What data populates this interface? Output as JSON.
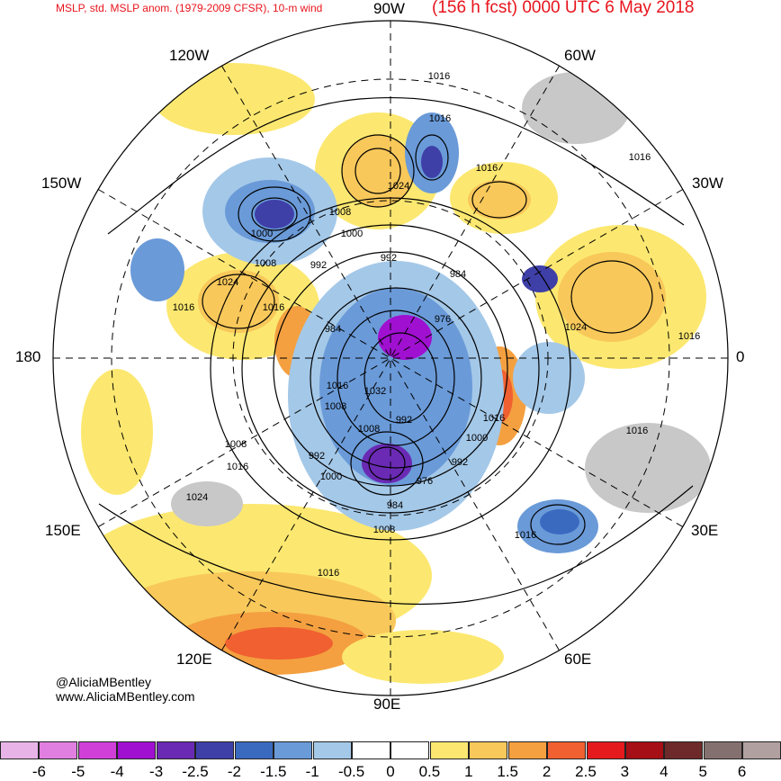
{
  "header": {
    "subtitle": "MSLP, std. MSLP anom. (1979-2009 CFSR), 10-m wind",
    "forecast": "(156 h fcst) 0000 UTC 6 May 2018"
  },
  "longitude_labels": {
    "top": "90W",
    "upper_left": "120W",
    "upper_right": "60W",
    "left_upper": "150W",
    "right_upper": "30W",
    "left": "180",
    "right": "0",
    "left_lower": "150E",
    "right_lower": "30E",
    "lower_left": "120E",
    "lower_right": "60E",
    "bottom": "90E"
  },
  "credits": {
    "handle": "@AliciaMBentley",
    "website": "www.AliciaMBentley.com"
  },
  "isobar_labels": [
    "1016",
    "1016",
    "1016",
    "1016",
    "1024",
    "1008",
    "1000",
    "1000",
    "992",
    "992",
    "984",
    "1008",
    "1016",
    "1024",
    "1016",
    "984",
    "976",
    "1024",
    "1016",
    "1016",
    "1032",
    "1008",
    "992",
    "1008",
    "992",
    "1000",
    "1008",
    "1016",
    "1000",
    "992",
    "976",
    "984",
    "1008",
    "1016",
    "1016",
    "1024",
    "1016",
    "1016"
  ],
  "colorbar": {
    "colors": [
      "#e8b4e8",
      "#e07fe0",
      "#d040d8",
      "#a010d0",
      "#6a2ab4",
      "#3f3fa8",
      "#3a6ac0",
      "#6a9ad8",
      "#a4c8e8",
      "#ffffff",
      "#ffffff",
      "#fce870",
      "#f8c85a",
      "#f4a040",
      "#f06030",
      "#e41a1c",
      "#a50f15",
      "#6e2a2a",
      "#857070",
      "#b0a0a0"
    ],
    "ticks": [
      "-6",
      "-5",
      "-4",
      "-3",
      "-2.5",
      "-2",
      "-1.5",
      "-1",
      "-0.5",
      "0",
      "0.5",
      "1",
      "1.5",
      "2",
      "2.5",
      "3",
      "4",
      "5",
      "6"
    ]
  },
  "palette": {
    "land": "#c8c8c8",
    "ocean": "#ffffff",
    "grid": "#000000",
    "title": "#e8141c"
  }
}
